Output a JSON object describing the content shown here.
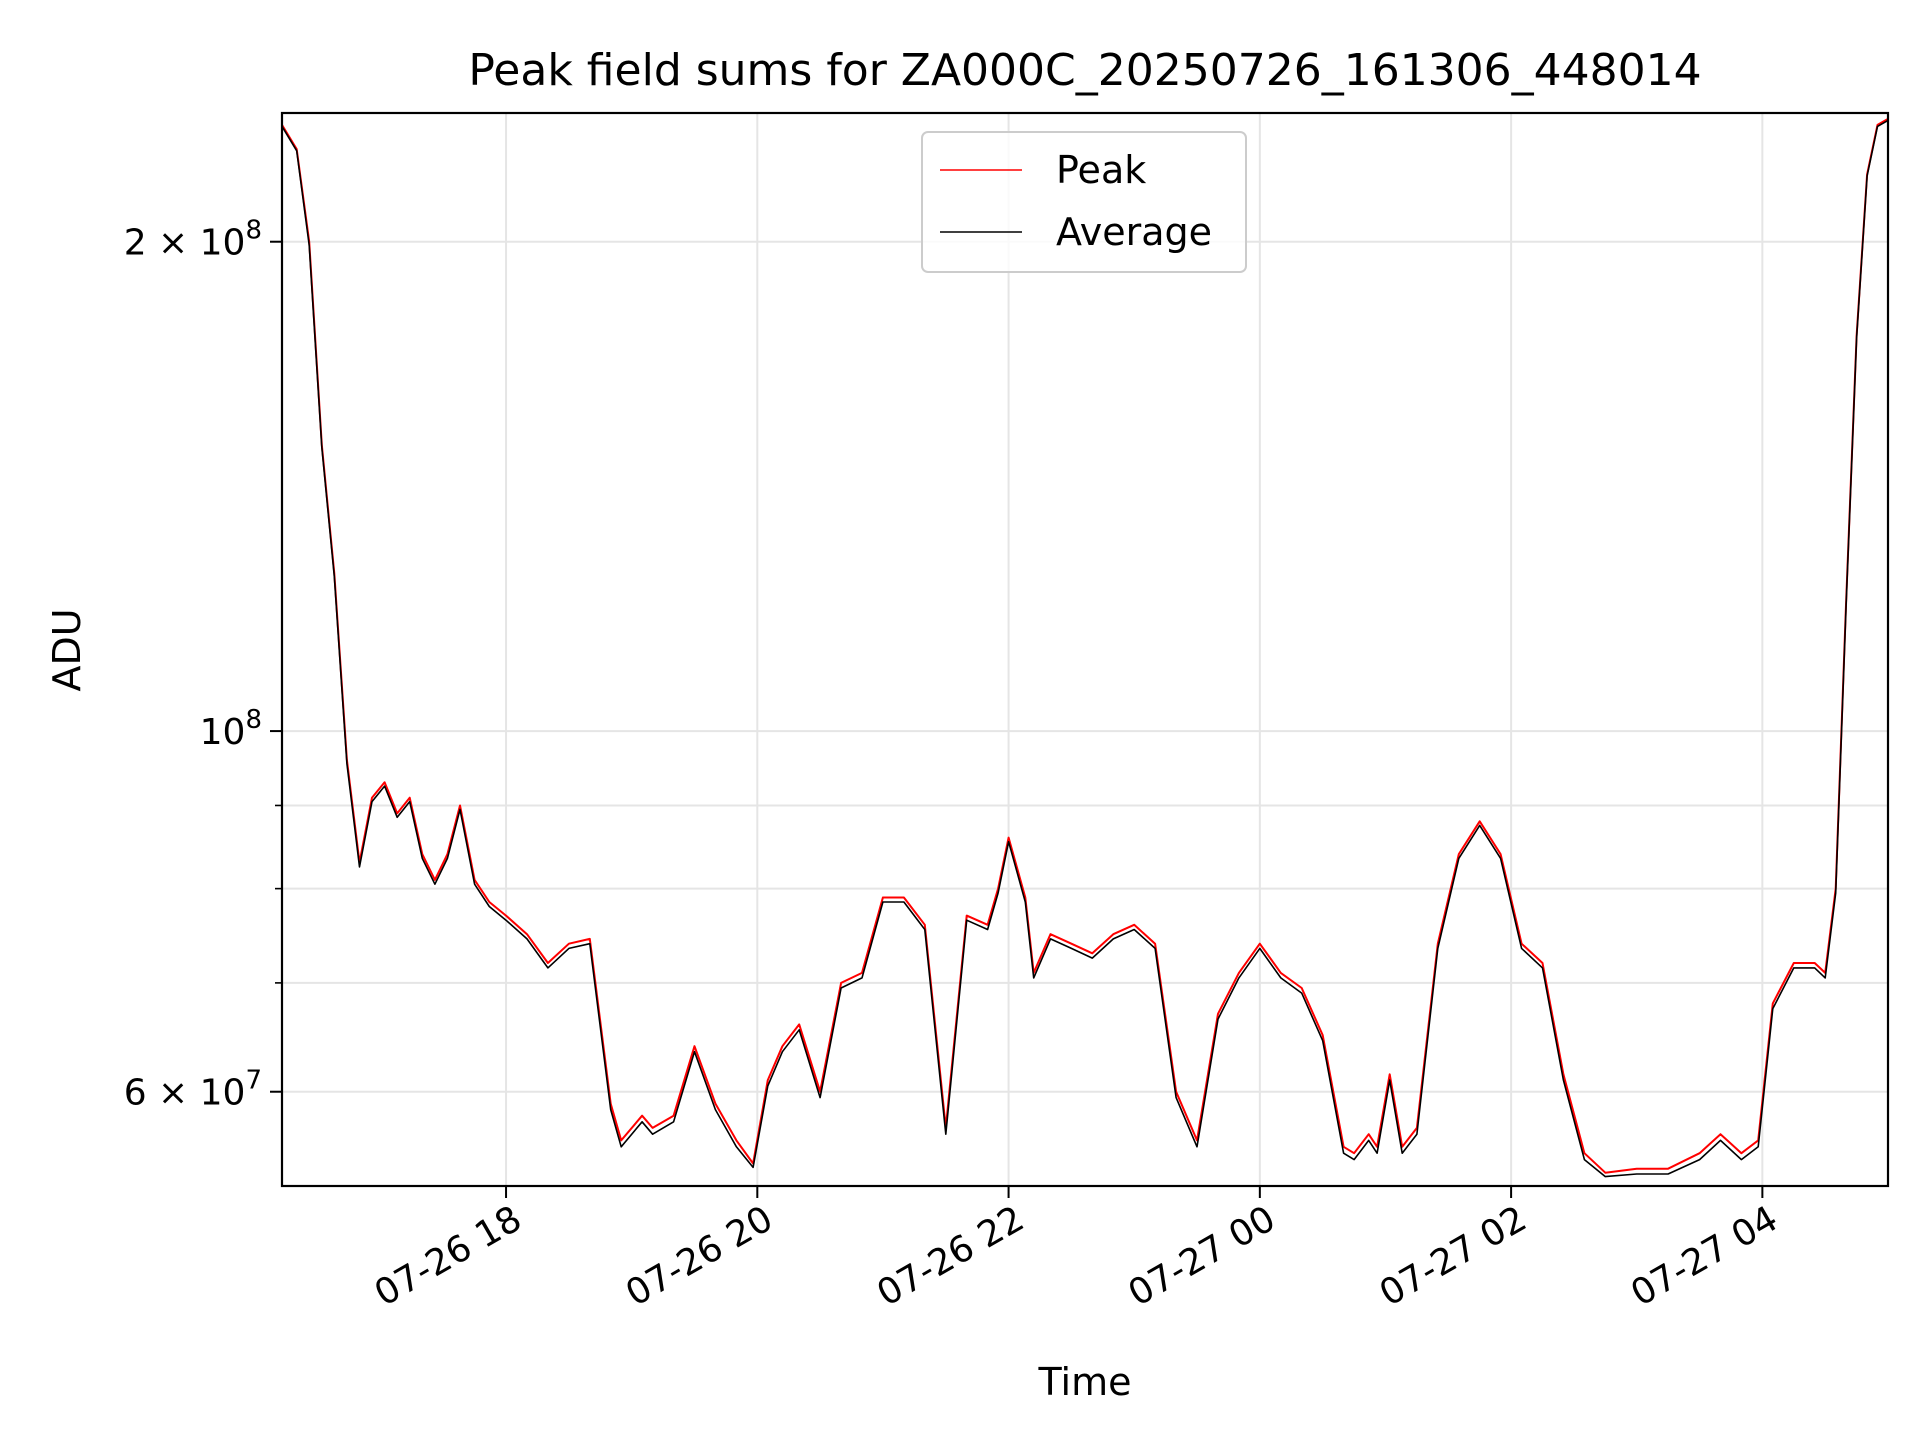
{
  "chart_data": {
    "type": "line",
    "title": "Peak field sums for ZA000C_20250726_161306_448014",
    "xlabel": "Time",
    "ylabel": "ADU",
    "yscale": "log",
    "ylim": [
      52500000,
      240000000
    ],
    "xlim": [
      "2025-07-26 16:13",
      "2025-07-27 05:00"
    ],
    "grid": true,
    "legend_position": "upper center",
    "x_ticks": [
      {
        "value": "2025-07-26 18:00",
        "label": "07-26 18"
      },
      {
        "value": "2025-07-26 20:00",
        "label": "07-26 20"
      },
      {
        "value": "2025-07-26 22:00",
        "label": "07-26 22"
      },
      {
        "value": "2025-07-27 00:00",
        "label": "07-27 00"
      },
      {
        "value": "2025-07-27 02:00",
        "label": "07-27 02"
      },
      {
        "value": "2025-07-27 04:00",
        "label": "07-27 04"
      }
    ],
    "y_ticks_major": [
      {
        "value": 60000000,
        "base": "6 × 10",
        "exp": "7"
      },
      {
        "value": 100000000,
        "base": "10",
        "exp": "8"
      },
      {
        "value": 200000000,
        "base": "2 × 10",
        "exp": "8"
      }
    ],
    "y_ticks_minor": [
      70000000,
      80000000,
      90000000
    ],
    "series": [
      {
        "name": "Peak",
        "color": "#ff0000",
        "x": [
          "2025-07-26 16:13",
          "2025-07-26 16:20",
          "2025-07-26 16:26",
          "2025-07-26 16:32",
          "2025-07-26 16:38",
          "2025-07-26 16:44",
          "2025-07-26 16:50",
          "2025-07-26 16:56",
          "2025-07-26 17:02",
          "2025-07-26 17:08",
          "2025-07-26 17:14",
          "2025-07-26 17:20",
          "2025-07-26 17:26",
          "2025-07-26 17:32",
          "2025-07-26 17:38",
          "2025-07-26 17:45",
          "2025-07-26 17:52",
          "2025-07-26 18:00",
          "2025-07-26 18:10",
          "2025-07-26 18:20",
          "2025-07-26 18:30",
          "2025-07-26 18:40",
          "2025-07-26 18:50",
          "2025-07-26 18:55",
          "2025-07-26 19:05",
          "2025-07-26 19:10",
          "2025-07-26 19:20",
          "2025-07-26 19:30",
          "2025-07-26 19:40",
          "2025-07-26 19:50",
          "2025-07-26 19:58",
          "2025-07-26 20:05",
          "2025-07-26 20:12",
          "2025-07-26 20:20",
          "2025-07-26 20:30",
          "2025-07-26 20:40",
          "2025-07-26 20:50",
          "2025-07-26 21:00",
          "2025-07-26 21:10",
          "2025-07-26 21:20",
          "2025-07-26 21:30",
          "2025-07-26 21:40",
          "2025-07-26 21:50",
          "2025-07-26 21:55",
          "2025-07-26 22:00",
          "2025-07-26 22:08",
          "2025-07-26 22:12",
          "2025-07-26 22:20",
          "2025-07-26 22:30",
          "2025-07-26 22:40",
          "2025-07-26 22:50",
          "2025-07-26 23:00",
          "2025-07-26 23:10",
          "2025-07-26 23:20",
          "2025-07-26 23:30",
          "2025-07-26 23:40",
          "2025-07-26 23:50",
          "2025-07-27 00:00",
          "2025-07-27 00:10",
          "2025-07-27 00:20",
          "2025-07-27 00:30",
          "2025-07-27 00:40",
          "2025-07-27 00:45",
          "2025-07-27 00:52",
          "2025-07-27 00:56",
          "2025-07-27 01:02",
          "2025-07-27 01:08",
          "2025-07-27 01:15",
          "2025-07-27 01:25",
          "2025-07-27 01:35",
          "2025-07-27 01:45",
          "2025-07-27 01:55",
          "2025-07-27 02:05",
          "2025-07-27 02:15",
          "2025-07-27 02:25",
          "2025-07-27 02:35",
          "2025-07-27 02:45",
          "2025-07-27 03:00",
          "2025-07-27 03:15",
          "2025-07-27 03:30",
          "2025-07-27 03:40",
          "2025-07-27 03:50",
          "2025-07-27 03:58",
          "2025-07-27 04:05",
          "2025-07-27 04:15",
          "2025-07-27 04:25",
          "2025-07-27 04:30",
          "2025-07-27 04:35",
          "2025-07-27 04:40",
          "2025-07-27 04:45",
          "2025-07-27 04:50",
          "2025-07-27 04:55",
          "2025-07-27 05:00"
        ],
        "values": [
          236000000,
          228000000,
          200000000,
          150000000,
          125000000,
          96000000,
          83000000,
          91000000,
          93000000,
          89000000,
          91000000,
          84000000,
          81000000,
          84000000,
          90000000,
          81000000,
          78500000,
          77000000,
          75000000,
          72000000,
          74000000,
          74500000,
          59000000,
          56000000,
          58000000,
          57000000,
          58000000,
          64000000,
          59000000,
          56000000,
          54200000,
          61000000,
          64000000,
          66000000,
          60000000,
          70000000,
          71000000,
          79000000,
          79000000,
          76000000,
          57000000,
          77000000,
          76000000,
          80000000,
          86000000,
          79000000,
          71000000,
          75000000,
          74000000,
          73000000,
          75000000,
          76000000,
          74000000,
          60000000,
          56000000,
          67000000,
          71000000,
          74000000,
          71000000,
          69500000,
          65000000,
          55500000,
          55000000,
          56500000,
          55500000,
          61500000,
          55500000,
          57000000,
          74000000,
          84000000,
          88000000,
          84000000,
          74000000,
          72000000,
          61500000,
          55000000,
          53500000,
          53800000,
          53800000,
          55000000,
          56500000,
          55000000,
          56000000,
          68000000,
          72000000,
          72000000,
          71000000,
          80000000,
          120000000,
          175000000,
          220000000,
          236000000,
          238000000
        ]
      },
      {
        "name": "Average",
        "color": "#000000",
        "x": [
          "2025-07-26 16:13",
          "2025-07-26 16:20",
          "2025-07-26 16:26",
          "2025-07-26 16:32",
          "2025-07-26 16:38",
          "2025-07-26 16:44",
          "2025-07-26 16:50",
          "2025-07-26 16:56",
          "2025-07-26 17:02",
          "2025-07-26 17:08",
          "2025-07-26 17:14",
          "2025-07-26 17:20",
          "2025-07-26 17:26",
          "2025-07-26 17:32",
          "2025-07-26 17:38",
          "2025-07-26 17:45",
          "2025-07-26 17:52",
          "2025-07-26 18:00",
          "2025-07-26 18:10",
          "2025-07-26 18:20",
          "2025-07-26 18:30",
          "2025-07-26 18:40",
          "2025-07-26 18:50",
          "2025-07-26 18:55",
          "2025-07-26 19:05",
          "2025-07-26 19:10",
          "2025-07-26 19:20",
          "2025-07-26 19:30",
          "2025-07-26 19:40",
          "2025-07-26 19:50",
          "2025-07-26 19:58",
          "2025-07-26 20:05",
          "2025-07-26 20:12",
          "2025-07-26 20:20",
          "2025-07-26 20:30",
          "2025-07-26 20:40",
          "2025-07-26 20:50",
          "2025-07-26 21:00",
          "2025-07-26 21:10",
          "2025-07-26 21:20",
          "2025-07-26 21:30",
          "2025-07-26 21:40",
          "2025-07-26 21:50",
          "2025-07-26 21:55",
          "2025-07-26 22:00",
          "2025-07-26 22:08",
          "2025-07-26 22:12",
          "2025-07-26 22:20",
          "2025-07-26 22:30",
          "2025-07-26 22:40",
          "2025-07-26 22:50",
          "2025-07-26 23:00",
          "2025-07-26 23:10",
          "2025-07-26 23:20",
          "2025-07-26 23:30",
          "2025-07-26 23:40",
          "2025-07-26 23:50",
          "2025-07-27 00:00",
          "2025-07-27 00:10",
          "2025-07-27 00:20",
          "2025-07-27 00:30",
          "2025-07-27 00:40",
          "2025-07-27 00:45",
          "2025-07-27 00:52",
          "2025-07-27 00:56",
          "2025-07-27 01:02",
          "2025-07-27 01:08",
          "2025-07-27 01:15",
          "2025-07-27 01:25",
          "2025-07-27 01:35",
          "2025-07-27 01:45",
          "2025-07-27 01:55",
          "2025-07-27 02:05",
          "2025-07-27 02:15",
          "2025-07-27 02:25",
          "2025-07-27 02:35",
          "2025-07-27 02:45",
          "2025-07-27 03:00",
          "2025-07-27 03:15",
          "2025-07-27 03:30",
          "2025-07-27 03:40",
          "2025-07-27 03:50",
          "2025-07-27 03:58",
          "2025-07-27 04:05",
          "2025-07-27 04:15",
          "2025-07-27 04:25",
          "2025-07-27 04:30",
          "2025-07-27 04:35",
          "2025-07-27 04:40",
          "2025-07-27 04:45",
          "2025-07-27 04:50",
          "2025-07-27 04:55",
          "2025-07-27 05:00"
        ],
        "values": [
          235500000,
          227500000,
          199000000,
          149500000,
          124500000,
          95500000,
          82500000,
          90500000,
          92500000,
          88500000,
          90500000,
          83500000,
          80500000,
          83500000,
          89500000,
          80500000,
          78000000,
          76500000,
          74500000,
          71500000,
          73500000,
          74000000,
          58500000,
          55500000,
          57500000,
          56500000,
          57500000,
          63500000,
          58500000,
          55500000,
          53900000,
          60500000,
          63500000,
          65500000,
          59500000,
          69500000,
          70500000,
          78500000,
          78500000,
          75500000,
          56500000,
          76500000,
          75500000,
          79500000,
          85500000,
          78500000,
          70500000,
          74500000,
          73500000,
          72500000,
          74500000,
          75500000,
          73500000,
          59500000,
          55500000,
          66500000,
          70500000,
          73500000,
          70500000,
          69000000,
          64500000,
          55000000,
          54500000,
          56000000,
          55000000,
          61000000,
          55000000,
          56500000,
          73500000,
          83500000,
          87500000,
          83500000,
          73500000,
          71500000,
          61000000,
          54500000,
          53200000,
          53400000,
          53400000,
          54500000,
          56000000,
          54500000,
          55500000,
          67500000,
          71500000,
          71500000,
          70500000,
          79500000,
          119500000,
          174500000,
          219500000,
          235500000,
          237500000
        ]
      }
    ]
  }
}
